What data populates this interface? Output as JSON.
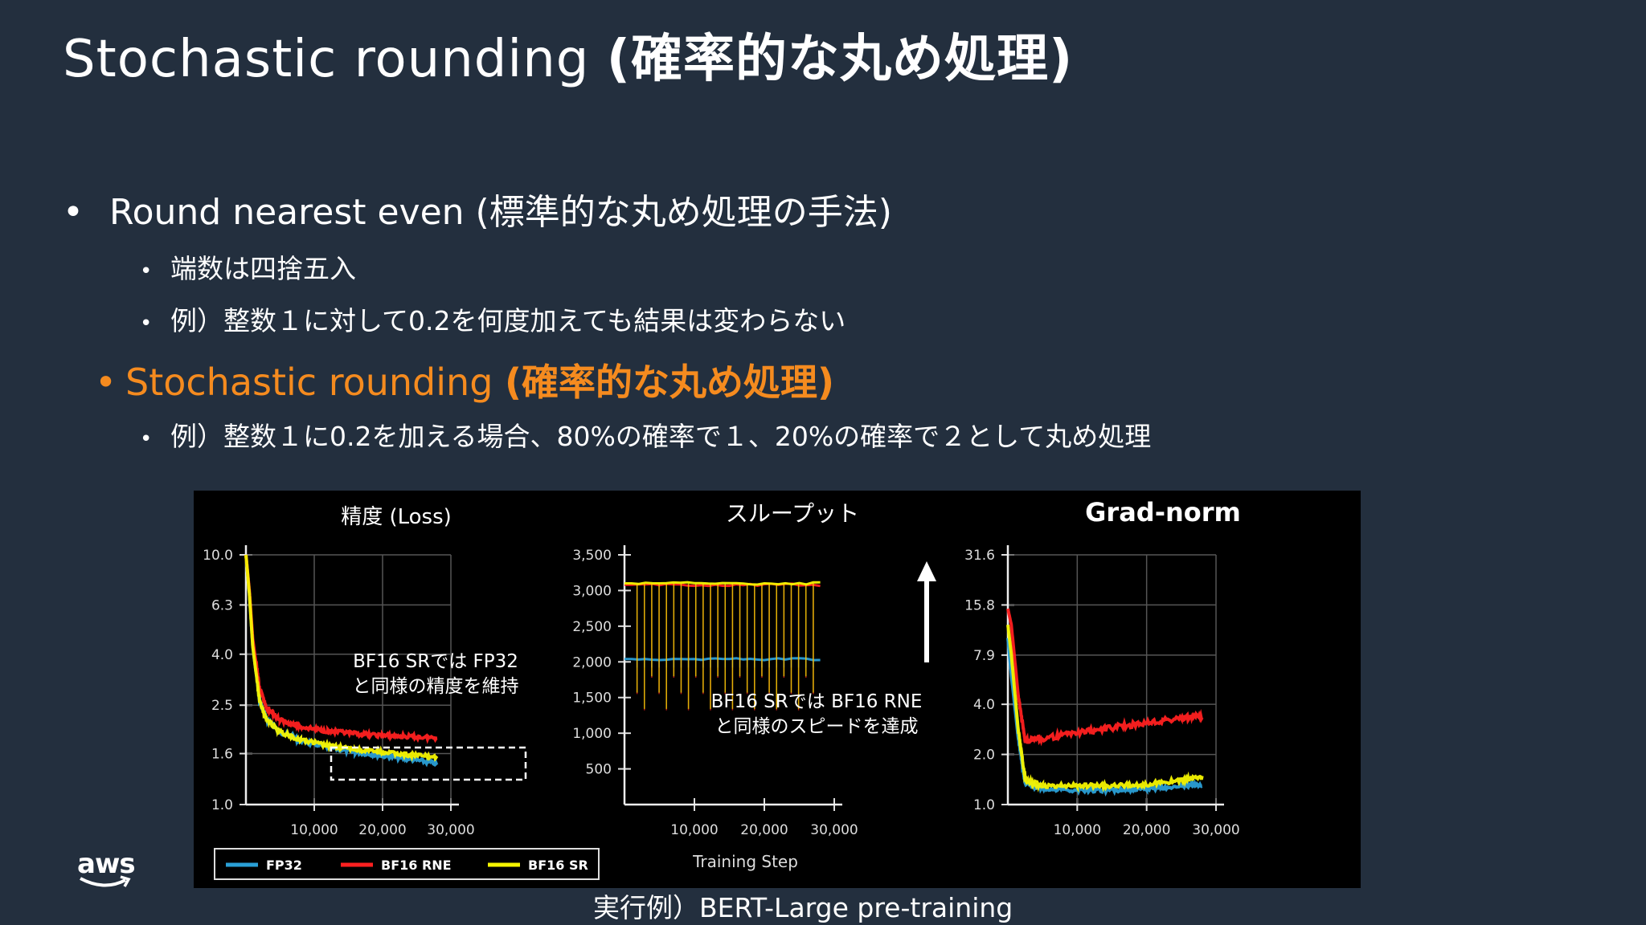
{
  "slide": {
    "title_en": "Stochastic rounding ",
    "title_jp": "(確率的な丸め処理)",
    "bullet1": "Round nearest even (標準的な丸め処理の手法)",
    "bullet1_sub1": "端数は四捨五入",
    "bullet1_sub2": "例）整数１に対して0.2を何度加えても結果は変わらない",
    "bullet2_en": "Stochastic rounding ",
    "bullet2_jp": "(確率的な丸め処理)",
    "bullet2_sub1": "例）整数１に0.2を加える場合、80%の確率で１、20%の確率で２として丸め処理",
    "bullet_char": "•",
    "caption": "実行例）BERT-Large pre-training",
    "aws_logo": "aws"
  },
  "colors": {
    "bg": "#232f3e",
    "accent": "#f58b1f",
    "fp32": "#2a9fd6",
    "bf16rne": "#ff2020",
    "bf16sr": "#f5f500"
  },
  "chart_data": [
    {
      "type": "line",
      "title": "精度 (Loss)",
      "yscale": "log",
      "yticks": [
        "10.0",
        "6.3",
        "4.0",
        "2.5",
        "1.6",
        "1.0"
      ],
      "xticks": [
        "10,000",
        "20,000",
        "30,000"
      ],
      "xlim": [
        0,
        30000
      ],
      "ylim": [
        1.0,
        10.0
      ],
      "annotation": [
        "BF16 SRでは FP32",
        "と同様の精度を維持"
      ],
      "series": [
        {
          "name": "FP32",
          "x": [
            0,
            500,
            1000,
            2000,
            3000,
            5000,
            8000,
            12000,
            16000,
            20000,
            24000,
            28000
          ],
          "y": [
            10.0,
            7.0,
            4.3,
            2.6,
            2.2,
            1.95,
            1.8,
            1.7,
            1.62,
            1.57,
            1.52,
            1.46
          ]
        },
        {
          "name": "BF16 RNE",
          "x": [
            0,
            500,
            1000,
            2000,
            3000,
            5000,
            8000,
            12000,
            16000,
            20000,
            24000,
            28000
          ],
          "y": [
            10.0,
            7.2,
            4.6,
            2.9,
            2.45,
            2.18,
            2.05,
            1.97,
            1.92,
            1.89,
            1.87,
            1.85
          ]
        },
        {
          "name": "BF16 SR",
          "x": [
            0,
            500,
            1000,
            2000,
            3000,
            5000,
            8000,
            12000,
            16000,
            20000,
            24000,
            28000
          ],
          "y": [
            10.0,
            7.0,
            4.3,
            2.6,
            2.2,
            1.95,
            1.82,
            1.72,
            1.66,
            1.62,
            1.58,
            1.55
          ]
        }
      ]
    },
    {
      "type": "line",
      "title": "スループット",
      "yticks": [
        "3,500",
        "3,000",
        "2,500",
        "2,000",
        "1,500",
        "1,000",
        "500"
      ],
      "xticks": [
        "10,000",
        "20,000",
        "30,000"
      ],
      "xlabel": "Training Step",
      "xlim": [
        0,
        30000
      ],
      "ylim": [
        0,
        3500
      ],
      "annotation": [
        "BF16 SRでは BF16 RNE",
        "と同様のスピードを達成"
      ],
      "series": [
        {
          "name": "FP32",
          "x": [
            0,
            28000
          ],
          "y": [
            2040,
            2040
          ]
        },
        {
          "name": "BF16 RNE",
          "x": [
            0,
            28000
          ],
          "y": [
            3080,
            3080
          ]
        },
        {
          "name": "BF16 SR",
          "x": [
            0,
            28000
          ],
          "y": [
            3100,
            3100
          ]
        }
      ]
    },
    {
      "type": "line",
      "title": "Grad-norm",
      "yscale": "log",
      "yticks": [
        "31.6",
        "15.8",
        "7.9",
        "4.0",
        "2.0",
        "1.0"
      ],
      "xticks": [
        "10,000",
        "20,000",
        "30,000"
      ],
      "xlim": [
        0,
        30000
      ],
      "ylim": [
        1.0,
        31.6
      ],
      "series": [
        {
          "name": "BF16 RNE",
          "x": [
            0,
            500,
            1500,
            2500,
            5000,
            10000,
            15000,
            20000,
            25000,
            28000
          ],
          "y": [
            15,
            12,
            4.5,
            2.4,
            2.5,
            2.7,
            2.9,
            3.1,
            3.3,
            3.4
          ]
        },
        {
          "name": "FP32",
          "x": [
            0,
            500,
            1500,
            2500,
            5000,
            10000,
            15000,
            20000,
            25000,
            28000
          ],
          "y": [
            10,
            6,
            2.5,
            1.35,
            1.25,
            1.22,
            1.22,
            1.24,
            1.3,
            1.32
          ]
        },
        {
          "name": "BF16 SR",
          "x": [
            0,
            500,
            1500,
            2500,
            5000,
            10000,
            15000,
            20000,
            25000,
            28000
          ],
          "y": [
            12,
            8,
            2.8,
            1.4,
            1.3,
            1.3,
            1.3,
            1.32,
            1.4,
            1.45
          ]
        }
      ]
    }
  ],
  "legend": [
    "FP32",
    "BF16 RNE",
    "BF16 SR"
  ]
}
